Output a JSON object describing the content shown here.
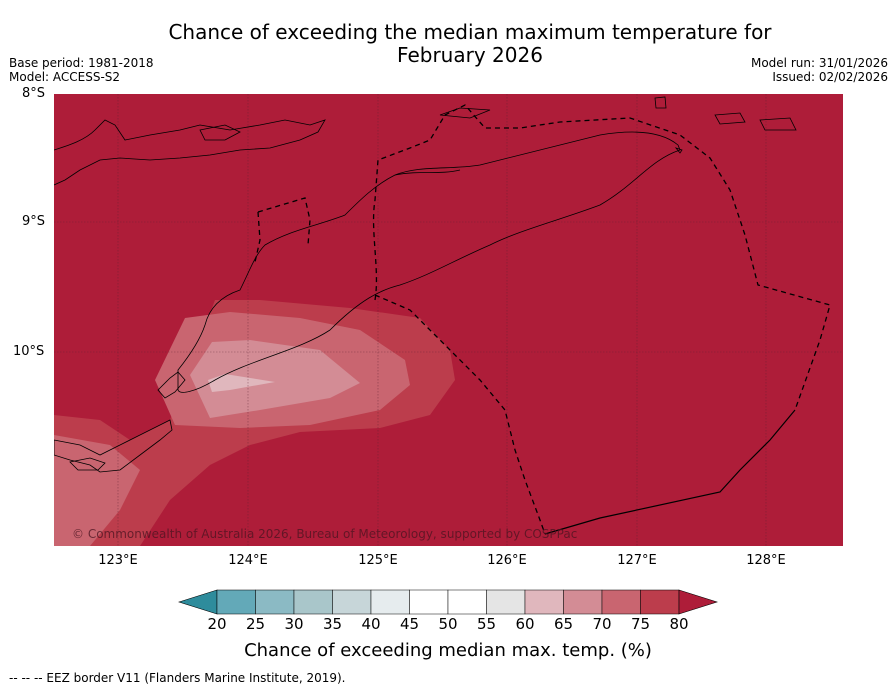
{
  "title_line1": "Chance of exceeding the median maximum temperature for",
  "title_line2": "February 2026",
  "base_period": "Base period: 1981-2018",
  "model": "Model: ACCESS-S2",
  "model_run": "Model run: 31/01/2026",
  "issued": "Issued: 02/02/2026",
  "lat_labels": [
    "8°S",
    "9°S",
    "10°S"
  ],
  "lon_labels": [
    "123°E",
    "124°E",
    "125°E",
    "126°E",
    "127°E",
    "128°E"
  ],
  "copyright": "© Commonwealth of Australia 2026, Bureau of Meteorology, supported by COSPPac",
  "colorbar": {
    "ticks": [
      "20",
      "25",
      "30",
      "35",
      "40",
      "45",
      "50",
      "55",
      "60",
      "65",
      "70",
      "75",
      "80"
    ],
    "colors": [
      "#2e8c9c",
      "#63a9b8",
      "#8bbac4",
      "#a9c6ca",
      "#c7d6d9",
      "#e6ecee",
      "#ffffff",
      "#ffffff",
      "#e5e5e5",
      "#e0b7bd",
      "#d38c95",
      "#c96570",
      "#bc3d4c",
      "#ae1d39"
    ],
    "title": "Chance of exceeding median max. temp. (%)"
  },
  "footer": "--  --  -- EEZ border V11 (Flanders Marine Institute, 2019).",
  "map_data": {
    "extent_lon": [
      122.5,
      128.6
    ],
    "extent_lat": [
      -11.5,
      -8.0
    ],
    "dominant_category": "80+",
    "min_category": "55-60"
  }
}
